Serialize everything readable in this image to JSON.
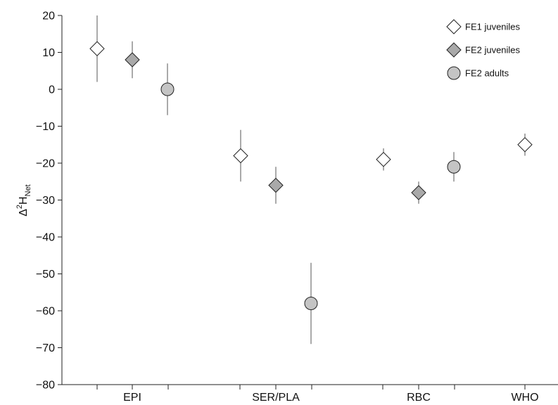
{
  "chart_data": {
    "type": "scatter",
    "title": "",
    "xlabel": "",
    "ylabel": {
      "base": "Δ",
      "sup": "2",
      "main": "H",
      "sub": "Net"
    },
    "ylim": [
      -80,
      20
    ],
    "yticks": [
      20,
      10,
      0,
      -10,
      -20,
      -30,
      -40,
      -50,
      -60,
      -70,
      -80
    ],
    "ytick_labels": [
      "20",
      "10",
      "0",
      "−10",
      "−20",
      "−30",
      "−40",
      "−50",
      "−60",
      "−70",
      "−80"
    ],
    "categories": [
      "EPI",
      "SER/PLA",
      "RBC",
      "WHO"
    ],
    "legend_position": "top-right",
    "series": [
      {
        "name": "FE1 juveniles",
        "marker": "diamond",
        "color": "#ffffff",
        "points": [
          {
            "category": "EPI",
            "offset": -1,
            "y": 11,
            "low": 2,
            "high": 20
          },
          {
            "category": "SER/PLA",
            "offset": -1,
            "y": -18,
            "low": -25,
            "high": -11
          },
          {
            "category": "RBC",
            "offset": -1,
            "y": -19,
            "low": -22,
            "high": -16
          },
          {
            "category": "WHO",
            "offset": 0,
            "y": -15,
            "low": -18,
            "high": -12
          }
        ]
      },
      {
        "name": "FE2 juveniles",
        "marker": "diamond",
        "color": "#a9a9a9",
        "points": [
          {
            "category": "EPI",
            "offset": 0,
            "y": 8,
            "low": 3,
            "high": 13
          },
          {
            "category": "SER/PLA",
            "offset": 0,
            "y": -26,
            "low": -31,
            "high": -21
          },
          {
            "category": "RBC",
            "offset": 0,
            "y": -28,
            "low": -31,
            "high": -25
          }
        ]
      },
      {
        "name": "FE2 adults",
        "marker": "circle",
        "color": "#c4c4c4",
        "points": [
          {
            "category": "EPI",
            "offset": 1,
            "y": 0,
            "low": -7,
            "high": 7
          },
          {
            "category": "SER/PLA",
            "offset": 1,
            "y": -58,
            "low": -69,
            "high": -47
          },
          {
            "category": "RBC",
            "offset": 1,
            "y": -21,
            "low": -25,
            "high": -17
          }
        ]
      }
    ]
  }
}
